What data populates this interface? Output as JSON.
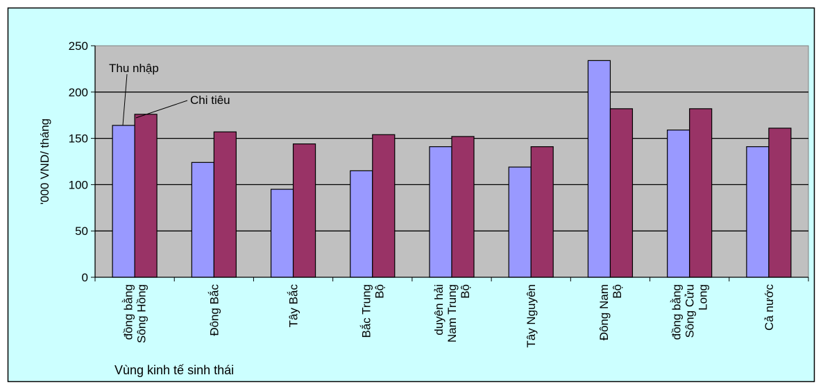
{
  "chart_data": {
    "type": "bar",
    "xlabel": "Vùng kinh tế sinh thái",
    "ylabel": "'000 VND/ tháng",
    "ylim": [
      0,
      250
    ],
    "yticks": [
      0,
      50,
      100,
      150,
      200,
      250
    ],
    "grid": true,
    "categories": [
      [
        "đồng bằng",
        "Sông Hồng"
      ],
      [
        "Đông Bắc"
      ],
      [
        "Tây Bắc"
      ],
      [
        "Bắc Trung",
        "Bộ"
      ],
      [
        "duyên hải",
        "Nam Trung",
        "Bộ"
      ],
      [
        "Tây Nguyên"
      ],
      [
        "Đông Nam",
        "Bộ"
      ],
      [
        "đồng bằng",
        "Sông Cửu",
        "Long"
      ],
      [
        "Cả nước"
      ]
    ],
    "series": [
      {
        "name": "Thu nhập",
        "color": "#9999ff",
        "values": [
          164,
          124,
          95,
          115,
          141,
          119,
          234,
          159,
          141
        ]
      },
      {
        "name": "Chi tiêu",
        "color": "#993366",
        "values": [
          176,
          157,
          144,
          154,
          152,
          141,
          182,
          182,
          161
        ]
      }
    ],
    "annotations": [
      "Thu nhập",
      "Chi tiêu"
    ]
  },
  "colors": {
    "plot_background": "#c0c0c0",
    "frame_background": "#ccffff"
  }
}
